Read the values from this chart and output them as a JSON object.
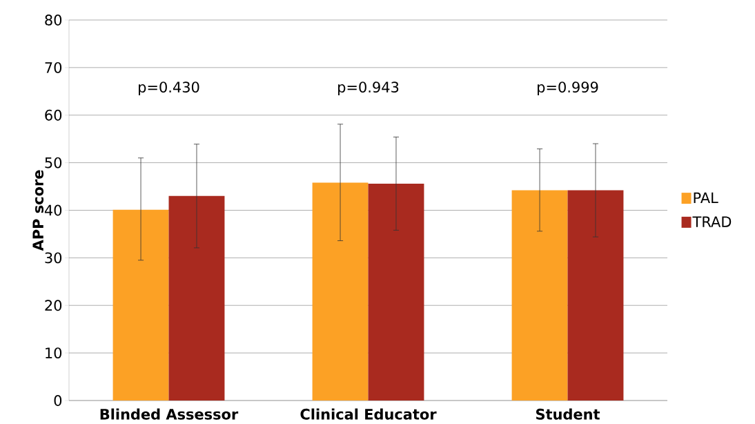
{
  "chart_data": {
    "type": "bar",
    "ylabel": "APP score",
    "categories": [
      "Blinded Assessor",
      "Clinical Educator",
      "Student"
    ],
    "series": [
      {
        "name": "PAL",
        "color": "#fca125",
        "values": [
          40.1,
          45.8,
          44.2
        ],
        "errors": [
          [
            29.5,
            51.0
          ],
          [
            33.6,
            58.1
          ],
          [
            35.6,
            52.9
          ]
        ]
      },
      {
        "name": "TRAD",
        "color": "#a92a1f",
        "values": [
          43.0,
          45.6,
          44.2
        ],
        "errors": [
          [
            32.1,
            53.9
          ],
          [
            35.8,
            55.4
          ],
          [
            34.4,
            54.0
          ]
        ]
      }
    ],
    "annotations": [
      "p=0.430",
      "p=0.943",
      "p=0.999"
    ],
    "ylim": [
      0,
      80
    ],
    "yticks": [
      0,
      10,
      20,
      30,
      40,
      50,
      60,
      70,
      80
    ],
    "grid": "y",
    "legend": "right"
  }
}
